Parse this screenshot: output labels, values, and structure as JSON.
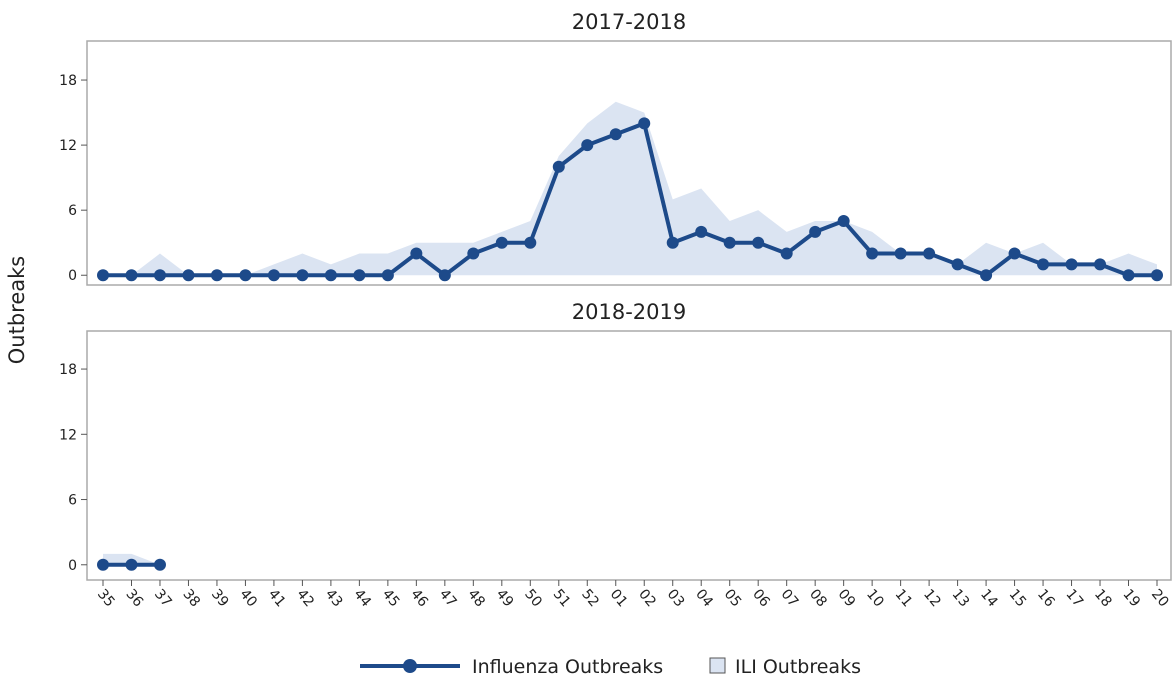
{
  "chart_data": [
    {
      "type": "line",
      "title": "2017-2018",
      "y_label": "Outbreaks",
      "categories": [
        "35",
        "36",
        "37",
        "38",
        "39",
        "40",
        "41",
        "42",
        "43",
        "44",
        "45",
        "46",
        "47",
        "48",
        "49",
        "50",
        "51",
        "52",
        "01",
        "02",
        "03",
        "04",
        "05",
        "06",
        "07",
        "08",
        "09",
        "10",
        "11",
        "12",
        "13",
        "14",
        "15",
        "16",
        "17",
        "18",
        "19",
        "20"
      ],
      "series": [
        {
          "name": "ILI Outbreaks",
          "type": "area",
          "color": "#dbe4f2",
          "values": [
            0,
            0,
            2,
            0,
            0,
            0,
            1,
            2,
            1,
            2,
            2,
            3,
            3,
            3,
            4,
            5,
            11,
            14,
            16,
            15,
            7,
            8,
            5,
            6,
            4,
            5,
            5,
            4,
            2,
            2,
            1,
            3,
            2,
            3,
            1,
            1,
            2,
            1
          ]
        },
        {
          "name": "Influenza Outbreaks",
          "type": "line",
          "color": "#1d4a8a",
          "values": [
            0,
            0,
            0,
            0,
            0,
            0,
            0,
            0,
            0,
            0,
            0,
            2,
            0,
            2,
            3,
            3,
            10,
            12,
            13,
            14,
            3,
            4,
            3,
            3,
            2,
            4,
            5,
            2,
            2,
            2,
            1,
            0,
            2,
            1,
            1,
            1,
            0,
            0
          ]
        }
      ],
      "ylim": [
        -0.9,
        21.6
      ],
      "yticks": [
        0,
        6,
        12,
        18
      ]
    },
    {
      "type": "line",
      "title": "2018-2019",
      "categories": [
        "35",
        "36",
        "37",
        "38",
        "39",
        "40",
        "41",
        "42",
        "43",
        "44",
        "45",
        "46",
        "47",
        "48",
        "49",
        "50",
        "51",
        "52",
        "01",
        "02",
        "03",
        "04",
        "05",
        "06",
        "07",
        "08",
        "09",
        "10",
        "11",
        "12",
        "13",
        "14",
        "15",
        "16",
        "17",
        "18",
        "19",
        "20"
      ],
      "series": [
        {
          "type": "area",
          "color": "#dbe4f2",
          "values": [
            1,
            1,
            0,
            null,
            null,
            null,
            null,
            null,
            null,
            null,
            null,
            null,
            null,
            null,
            null,
            null,
            null,
            null,
            null,
            null,
            null,
            null,
            null,
            null,
            null,
            null,
            null,
            null,
            null,
            null,
            null,
            null,
            null,
            null,
            null,
            null,
            null,
            null
          ]
        },
        {
          "type": "line",
          "color": "#1d4a8a",
          "values": [
            0,
            0,
            0,
            null,
            null,
            null,
            null,
            null,
            null,
            null,
            null,
            null,
            null,
            null,
            null,
            null,
            null,
            null,
            null,
            null,
            null,
            null,
            null,
            null,
            null,
            null,
            null,
            null,
            null,
            null,
            null,
            null,
            null,
            null,
            null,
            null,
            null,
            null
          ]
        }
      ],
      "ylim": [
        -1.4,
        21.5
      ],
      "yticks": [
        0,
        6,
        12,
        18
      ]
    }
  ]
}
